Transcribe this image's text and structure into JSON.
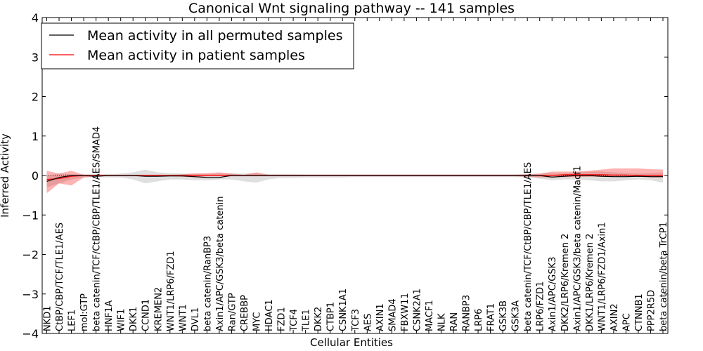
{
  "chart_data": {
    "type": "line",
    "title": "Canonical Wnt signaling pathway -- 141 samples",
    "xlabel": "Cellular Entities",
    "ylabel": "Inferred Activity",
    "ylim": [
      -4,
      4
    ],
    "yticks": [
      -4,
      -3,
      -2,
      -1,
      0,
      1,
      2,
      3,
      4
    ],
    "ytick_labels": [
      "−4",
      "−3",
      "−2",
      "−1",
      "0",
      "1",
      "2",
      "3",
      "4"
    ],
    "grid": false,
    "legend_position": "top-left",
    "categories": [
      "NKD1",
      "CtBP/CBP/TCF/TLE1/AES",
      "LEF1",
      "mol:GTP",
      "beta catenin/TCF/CtBP/CBP/TLE1/AES/SMAD4",
      "HNF1A",
      "WIF1",
      "DKK1",
      "CCND1",
      "KREMEN2",
      "WNT1/LRP6/FZD1",
      "WNT1",
      "DVL1",
      "beta catenin/RanBP3",
      "Axin1/APC/GSK3/beta catenin",
      "Ran/GTP",
      "CREBBP",
      "MYC",
      "HDAC1",
      "FZD1",
      "TCF4",
      "TLE1",
      "DKK2",
      "CTBP1",
      "CSNK1A1",
      "TCF3",
      "AES",
      "AXIN1",
      "SMAD4",
      "FBXW11",
      "CSNK2A1",
      "MACF1",
      "NLK",
      "RAN",
      "RANBP3",
      "LRP6",
      "FRAT1",
      "GSK3B",
      "GSK3A",
      "beta catenin/TCF/CtBP/CBP/TLE1/AES",
      "LRP6/FZD1",
      "Axin1/APC/GSK3",
      "DKK2/LRP6/Kremen 2",
      "Axin1/APC/GSK3/beta catenin/Macf1",
      "DKK1/LRP6/Kremen 2",
      "WNT1/LRP6/FZD1/Axin1",
      "AXIN2",
      "APC",
      "CTNNB1",
      "PPP2R5D",
      "beta catenin/beta TrCP1"
    ],
    "series": [
      {
        "name": "Mean activity in all permuted samples",
        "color": "#000000",
        "values": [
          -0.15,
          -0.05,
          0.0,
          0.0,
          -0.02,
          0.0,
          0.0,
          0.0,
          -0.02,
          -0.02,
          -0.01,
          -0.01,
          -0.03,
          -0.05,
          -0.05,
          0.0,
          0.0,
          0.0,
          0.0,
          0.0,
          0.0,
          0.0,
          0.0,
          0.0,
          0.0,
          0.0,
          0.0,
          0.0,
          0.0,
          0.0,
          0.0,
          0.0,
          0.0,
          0.0,
          0.0,
          0.0,
          0.0,
          0.0,
          0.0,
          0.0,
          0.0,
          -0.04,
          -0.02,
          0.0,
          0.0,
          -0.02,
          -0.03,
          -0.03,
          -0.02,
          -0.03,
          -0.03
        ],
        "band_upper": [
          0.0,
          0.05,
          0.03,
          0.03,
          0.03,
          0.03,
          0.05,
          0.08,
          0.15,
          0.08,
          0.06,
          0.05,
          0.05,
          0.04,
          0.05,
          0.05,
          0.05,
          0.05,
          0.04,
          0.04,
          0.04,
          0.03,
          0.03,
          0.03,
          0.03,
          0.03,
          0.03,
          0.03,
          0.03,
          0.03,
          0.03,
          0.03,
          0.03,
          0.03,
          0.03,
          0.03,
          0.03,
          0.03,
          0.03,
          0.03,
          0.04,
          0.06,
          0.06,
          0.08,
          0.1,
          0.1,
          0.08,
          0.06,
          0.05,
          0.06,
          0.08
        ],
        "band_lower": [
          -0.3,
          -0.2,
          -0.1,
          -0.05,
          -0.05,
          -0.05,
          -0.05,
          -0.1,
          -0.2,
          -0.15,
          -0.1,
          -0.1,
          -0.12,
          -0.12,
          -0.1,
          -0.1,
          -0.15,
          -0.18,
          -0.1,
          -0.06,
          -0.06,
          -0.05,
          -0.05,
          -0.05,
          -0.05,
          -0.04,
          -0.04,
          -0.04,
          -0.04,
          -0.04,
          -0.04,
          -0.04,
          -0.04,
          -0.04,
          -0.04,
          -0.04,
          -0.04,
          -0.04,
          -0.04,
          -0.05,
          -0.08,
          -0.12,
          -0.1,
          -0.1,
          -0.12,
          -0.15,
          -0.15,
          -0.12,
          -0.1,
          -0.12,
          -0.18
        ]
      },
      {
        "name": "Mean activity in patient samples",
        "color": "#ff0000",
        "values": [
          -0.1,
          -0.08,
          -0.02,
          0.0,
          0.0,
          0.0,
          0.0,
          0.0,
          0.0,
          0.0,
          0.0,
          0.0,
          0.0,
          0.0,
          0.0,
          0.0,
          0.0,
          0.0,
          0.0,
          0.0,
          0.0,
          0.0,
          0.0,
          0.0,
          0.0,
          0.0,
          0.0,
          0.0,
          0.0,
          0.0,
          0.0,
          0.0,
          0.0,
          0.0,
          0.0,
          0.0,
          0.0,
          0.0,
          0.0,
          0.0,
          0.0,
          0.0,
          0.02,
          0.02,
          0.02,
          0.02,
          0.01,
          0.01,
          0.0,
          0.0,
          0.0
        ],
        "band_upper": [
          0.12,
          0.05,
          0.12,
          0.02,
          0.02,
          0.02,
          0.02,
          0.02,
          0.02,
          0.02,
          0.02,
          0.03,
          0.05,
          0.06,
          0.08,
          0.05,
          0.02,
          0.08,
          0.02,
          0.02,
          0.02,
          0.02,
          0.02,
          0.02,
          0.02,
          0.02,
          0.02,
          0.02,
          0.02,
          0.02,
          0.02,
          0.02,
          0.02,
          0.02,
          0.02,
          0.02,
          0.02,
          0.02,
          0.02,
          0.03,
          0.05,
          0.1,
          0.1,
          0.1,
          0.12,
          0.15,
          0.18,
          0.18,
          0.18,
          0.16,
          0.15
        ],
        "band_lower": [
          -0.45,
          -0.2,
          -0.25,
          -0.05,
          -0.02,
          -0.02,
          -0.02,
          -0.02,
          -0.02,
          -0.02,
          -0.02,
          -0.03,
          -0.05,
          -0.02,
          -0.02,
          -0.02,
          -0.02,
          -0.02,
          -0.02,
          -0.02,
          -0.02,
          -0.02,
          -0.02,
          -0.02,
          -0.02,
          -0.02,
          -0.02,
          -0.02,
          -0.02,
          -0.02,
          -0.02,
          -0.02,
          -0.02,
          -0.02,
          -0.02,
          -0.02,
          -0.02,
          -0.02,
          -0.02,
          -0.03,
          -0.05,
          -0.05,
          -0.04,
          -0.04,
          -0.03,
          -0.03,
          -0.03,
          -0.02,
          -0.03,
          -0.05,
          -0.05
        ]
      }
    ]
  }
}
